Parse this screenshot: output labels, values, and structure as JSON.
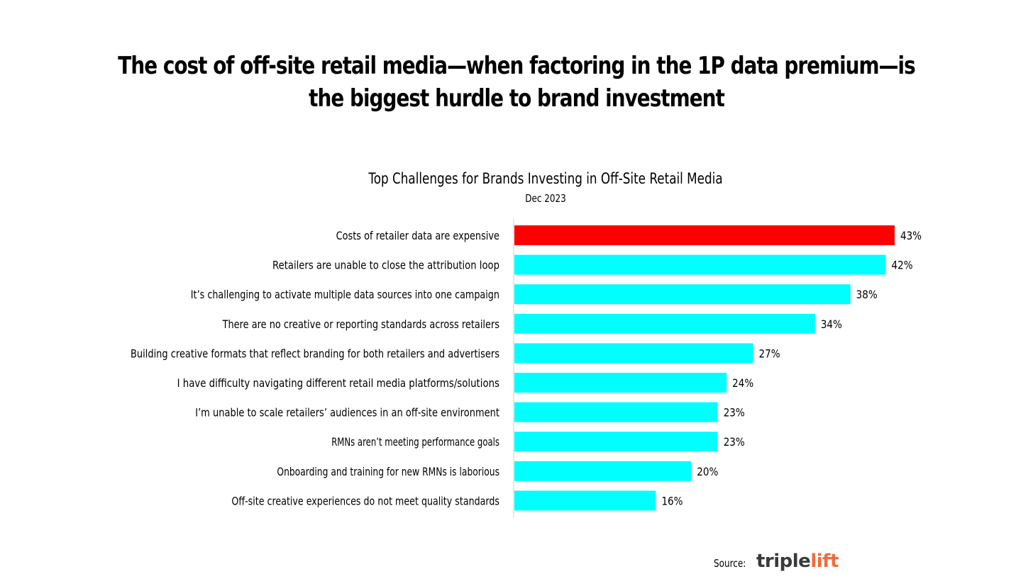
{
  "headline": "The cost of off-site retail media—when factoring in the 1P data premium—is the biggest hurdle to brand investment",
  "source_label": "Source:",
  "logo": {
    "part1": "triple",
    "part2": "lift",
    "color_part1": "#3a3a3a",
    "color_part2": "#f26b3a"
  },
  "chart_data": {
    "type": "bar",
    "orientation": "horizontal",
    "title": "Top Challenges for Brands Investing in Off-Site Retail Media",
    "subtitle": "Dec 2023",
    "xlabel": "",
    "ylabel": "",
    "xlim": [
      0,
      43
    ],
    "grid": false,
    "legend": "none",
    "value_suffix": "%",
    "categories": [
      "Costs of retailer data are expensive",
      "Retailers are unable to close the attribution loop",
      "It’s challenging to activate multiple data sources into one campaign",
      "There are no creative or reporting standards across retailers",
      "Building creative formats that reflect branding for both retailers and advertisers",
      "I have difficulty navigating different retail media platforms/solutions",
      "I’m unable to scale retailers’ audiences in an off-site environment",
      "RMNs aren’t meeting performance goals",
      "Onboarding and training for new RMNs is laborious",
      "Off-site creative experiences do not meet quality standards"
    ],
    "values": [
      43,
      42,
      38,
      34,
      27,
      24,
      23,
      23,
      20,
      16
    ],
    "value_labels": [
      "43%",
      "42%",
      "38%",
      "34%",
      "27%",
      "24%",
      "23%",
      "23%",
      "20%",
      "16%"
    ],
    "highlight_index": 0,
    "colors": {
      "highlight": "#ff0000",
      "default": "#00ffff",
      "axis": "#d0d0d0"
    }
  }
}
